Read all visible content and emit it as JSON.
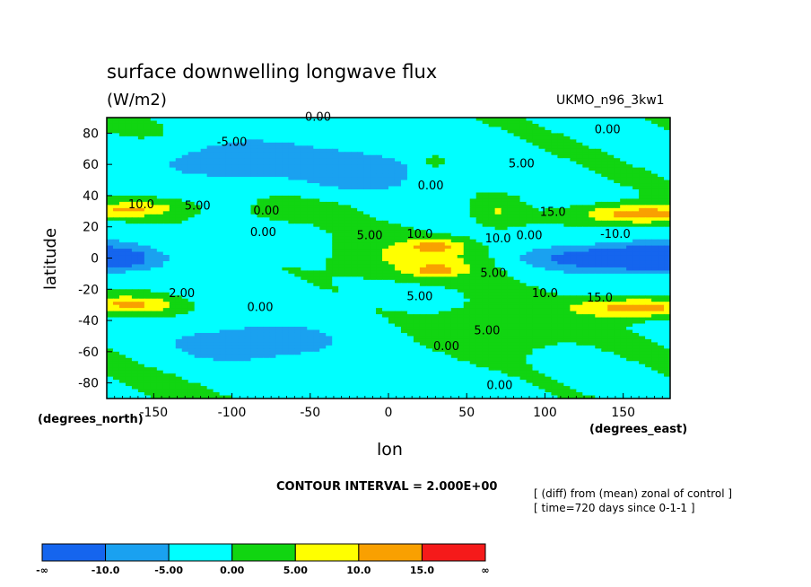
{
  "chart_data": {
    "type": "heatmap",
    "title": "surface downwelling longwave flux",
    "units": "(W/m2)",
    "model": "UKMO_n96_3kw1",
    "xlabel": "lon",
    "ylabel": "latitude",
    "x_unit_label": "(degrees_east)",
    "y_unit_label": "(degrees_north)",
    "xlim": [
      -180,
      180
    ],
    "ylim": [
      -90,
      90
    ],
    "x_ticks": [
      "-150",
      "-100",
      "-50",
      "0",
      "50",
      "100",
      "150"
    ],
    "y_ticks": [
      "80",
      "60",
      "40",
      "20",
      "0",
      "-20",
      "-40",
      "-60",
      "-80"
    ],
    "contour_interval_text": "CONTOUR INTERVAL = 2.000E+00",
    "notes": [
      "[ (diff) from (mean) zonal of control ]",
      "[ time=720 days since 0-1-1 ]"
    ],
    "colorbar": {
      "colors": [
        "#1565ee",
        "#1aa1f0",
        "#00ffff",
        "#11d511",
        "#ffff00",
        "#f9a001",
        "#f51a1a"
      ],
      "labels": [
        "-∞",
        "-10.0",
        "-5.00",
        "0.00",
        "5.00",
        "10.0",
        "15.0",
        "∞"
      ],
      "levels": [
        -10,
        -5,
        0,
        5,
        10,
        15
      ]
    },
    "contour_labels": [
      {
        "text": "0.00",
        "lon": -45,
        "lat": 90
      },
      {
        "text": "-5.00",
        "lon": -100,
        "lat": 74
      },
      {
        "text": "0.00",
        "lon": 140,
        "lat": 82
      },
      {
        "text": "5.00",
        "lon": 85,
        "lat": 60
      },
      {
        "text": "0.00",
        "lon": 27,
        "lat": 46
      },
      {
        "text": "10.0",
        "lon": -158,
        "lat": 34
      },
      {
        "text": "5.00",
        "lon": -122,
        "lat": 33
      },
      {
        "text": "0.00",
        "lon": -78,
        "lat": 30
      },
      {
        "text": "15.0",
        "lon": 105,
        "lat": 29
      },
      {
        "text": "0.00",
        "lon": -80,
        "lat": 16
      },
      {
        "text": "5.00",
        "lon": -12,
        "lat": 14
      },
      {
        "text": "10.0",
        "lon": 20,
        "lat": 15
      },
      {
        "text": "10.0",
        "lon": 70,
        "lat": 12
      },
      {
        "text": "-10.0",
        "lon": 145,
        "lat": 15
      },
      {
        "text": "0.00",
        "lon": 90,
        "lat": 14
      },
      {
        "text": "5.00",
        "lon": 67,
        "lat": -10
      },
      {
        "text": "2.00",
        "lon": -132,
        "lat": -23
      },
      {
        "text": "5.00",
        "lon": 20,
        "lat": -25
      },
      {
        "text": "10.0",
        "lon": 100,
        "lat": -23
      },
      {
        "text": "15.0",
        "lon": 135,
        "lat": -26
      },
      {
        "text": "0.00",
        "lon": -82,
        "lat": -32
      },
      {
        "text": "5.00",
        "lon": 63,
        "lat": -47
      },
      {
        "text": "0.00",
        "lon": 37,
        "lat": -57
      },
      {
        "text": "0.00",
        "lon": 71,
        "lat": -82
      }
    ]
  }
}
